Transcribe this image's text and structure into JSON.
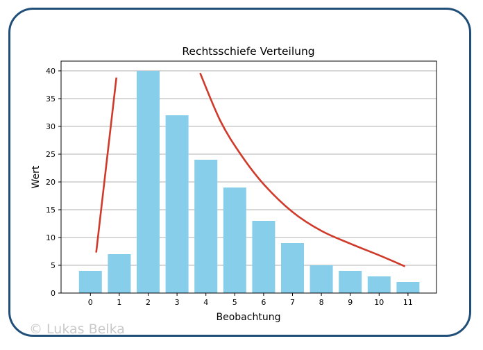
{
  "watermark": "© Lukas Belka",
  "colors": {
    "frame": "#1f4e79",
    "bar": "#87ceeb",
    "curve": "#d03a2a",
    "grid": "#b0b0b0"
  },
  "chart_data": {
    "type": "bar",
    "title": "Rechtsschiefe Verteilung",
    "xlabel": "Beobachtung",
    "ylabel": "Wert",
    "categories": [
      "0",
      "1",
      "2",
      "3",
      "4",
      "5",
      "6",
      "7",
      "8",
      "9",
      "10",
      "11"
    ],
    "values": [
      4,
      7,
      40,
      32,
      24,
      19,
      13,
      9,
      5,
      4,
      3,
      2
    ],
    "ylim": [
      0,
      40
    ],
    "yticks": [
      0,
      5,
      10,
      15,
      20,
      25,
      30,
      35,
      40
    ],
    "grid": "horizontal",
    "annotations": [
      {
        "type": "line",
        "description": "rising trend line",
        "points": [
          [
            0.2,
            7.3
          ],
          [
            0.9,
            38.8
          ]
        ]
      },
      {
        "type": "curve",
        "description": "falling trend curve",
        "points": [
          [
            3.8,
            39.6
          ],
          [
            4.5,
            31
          ],
          [
            5.2,
            25
          ],
          [
            6,
            19.6
          ],
          [
            7,
            14.6
          ],
          [
            8,
            11.2
          ],
          [
            9,
            8.9
          ],
          [
            10,
            6.8
          ],
          [
            10.9,
            4.8
          ]
        ]
      }
    ]
  }
}
